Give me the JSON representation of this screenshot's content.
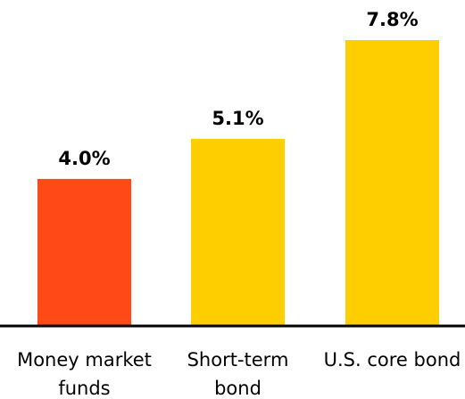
{
  "chart_data": {
    "type": "bar",
    "categories": [
      "Money market funds",
      "Short-term bond",
      "U.S. core bond"
    ],
    "values": [
      4.0,
      5.1,
      7.8
    ],
    "value_labels": [
      "4.0%",
      "5.1%",
      "7.8%"
    ],
    "colors": [
      "#ff4a17",
      "#ffce00",
      "#ffce00"
    ]
  }
}
